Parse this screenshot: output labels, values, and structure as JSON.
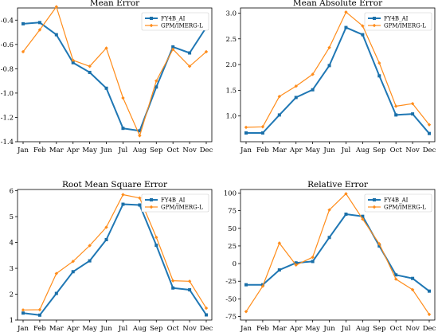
{
  "colors": {
    "fy4b": "#1f77b4",
    "gpm": "#ff8c1a",
    "fy4b_marker": "#1a6fa8",
    "gpm_marker": "#ff8c1a"
  },
  "chart_data": [
    {
      "type": "line",
      "title": "Mean Error",
      "categories": [
        "Jan",
        "Feb",
        "Mar",
        "Apr",
        "May",
        "Jun",
        "Jul",
        "Aug",
        "Sep",
        "Oct",
        "Nov",
        "Dec"
      ],
      "ylim": [
        -1.4,
        -0.3
      ],
      "yticks": [
        -1.4,
        -1.2,
        -1.0,
        -0.8,
        -0.6,
        -0.4
      ],
      "ytick_labels": [
        "-1.4",
        "-1.2",
        "-1.0",
        "-0.8",
        "-0.6",
        "-0.4"
      ],
      "legend": "top-right",
      "series": [
        {
          "name": "FY4B_AI",
          "values": [
            -0.43,
            -0.42,
            -0.52,
            -0.75,
            -0.83,
            -0.96,
            -1.29,
            -1.31,
            -0.95,
            -0.62,
            -0.67,
            -0.46
          ]
        },
        {
          "name": "GPM/IMERG-L",
          "values": [
            -0.66,
            -0.48,
            -0.29,
            -0.73,
            -0.78,
            -0.63,
            -1.04,
            -1.35,
            -0.9,
            -0.64,
            -0.78,
            -0.66
          ]
        }
      ]
    },
    {
      "type": "line",
      "title": "Mean Absolute Error",
      "categories": [
        "Jan",
        "Feb",
        "Mar",
        "Apr",
        "May",
        "Jun",
        "Jul",
        "Aug",
        "Sep",
        "Oct",
        "Nov",
        "Dec"
      ],
      "ylim": [
        0.5,
        3.1
      ],
      "yticks": [
        1.0,
        1.5,
        2.0,
        2.5,
        3.0
      ],
      "ytick_labels": [
        "1.0",
        "1.5",
        "2.0",
        "2.5",
        "3.0"
      ],
      "legend": "top-right",
      "series": [
        {
          "name": "FY4B_AI",
          "values": [
            0.67,
            0.67,
            1.02,
            1.36,
            1.51,
            1.98,
            2.72,
            2.58,
            1.78,
            1.02,
            1.04,
            0.66
          ]
        },
        {
          "name": "GPM/IMERG-L",
          "values": [
            0.78,
            0.79,
            1.38,
            1.58,
            1.81,
            2.33,
            3.02,
            2.75,
            2.03,
            1.19,
            1.24,
            0.83
          ]
        }
      ]
    },
    {
      "type": "line",
      "title": "Root Mean Square Error",
      "categories": [
        "Jan",
        "Feb",
        "Mar",
        "Apr",
        "May",
        "Jun",
        "Jul",
        "Aug",
        "Sep",
        "Oct",
        "Nov",
        "Dec"
      ],
      "ylim": [
        1.0,
        6.05
      ],
      "yticks": [
        1,
        2,
        3,
        4,
        5,
        6
      ],
      "ytick_labels": [
        "1",
        "2",
        "3",
        "4",
        "5",
        "6"
      ],
      "legend": "top-right",
      "series": [
        {
          "name": "FY4B_AI",
          "values": [
            1.27,
            1.19,
            2.03,
            2.87,
            3.29,
            4.11,
            5.48,
            5.45,
            3.89,
            2.24,
            2.17,
            1.2
          ]
        },
        {
          "name": "GPM/IMERG-L",
          "values": [
            1.39,
            1.4,
            2.8,
            3.27,
            3.88,
            4.59,
            5.85,
            5.72,
            4.2,
            2.52,
            2.5,
            1.46
          ]
        }
      ]
    },
    {
      "type": "line",
      "title": "Relative Error",
      "categories": [
        "Jan",
        "Feb",
        "Mar",
        "Apr",
        "May",
        "Jun",
        "Jul",
        "Aug",
        "Sep",
        "Oct",
        "Nov",
        "Dec"
      ],
      "ylim": [
        -80,
        105
      ],
      "yticks": [
        -75,
        -50,
        -25,
        0,
        25,
        50,
        75,
        100
      ],
      "ytick_labels": [
        "-75",
        "-50",
        "-25",
        "0",
        "25",
        "50",
        "75",
        "100"
      ],
      "legend": "top-right",
      "series": [
        {
          "name": "FY4B_AI",
          "values": [
            -30,
            -30,
            -9,
            1,
            3,
            37,
            70,
            67,
            25,
            -16,
            -21,
            -39
          ]
        },
        {
          "name": "GPM/IMERG-L",
          "values": [
            -68,
            -32,
            29,
            -2,
            9,
            76,
            99,
            63,
            28,
            -22,
            -37,
            -72
          ]
        }
      ]
    }
  ]
}
